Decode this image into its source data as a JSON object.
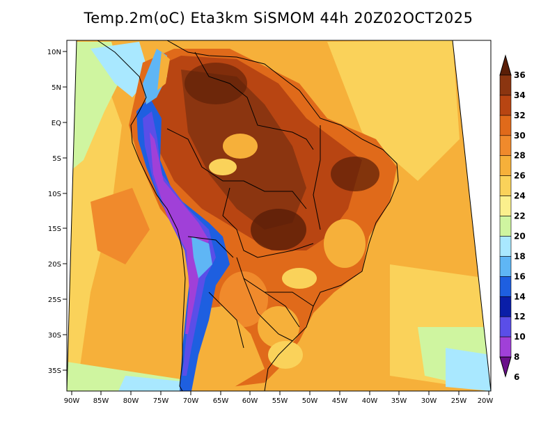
{
  "title": "Temp.2m(oC) Eta3km SiSMOM 44h 20Z02OCT2025",
  "lat_labels": [
    "10N",
    "5N",
    "EQ",
    "5S",
    "10S",
    "15S",
    "20S",
    "25S",
    "30S",
    "35S"
  ],
  "lon_labels": [
    "90W",
    "85W",
    "80W",
    "75W",
    "70W",
    "65W",
    "60W",
    "55W",
    "50W",
    "45W",
    "40W",
    "35W",
    "30W",
    "25W",
    "20W"
  ],
  "colorbar": {
    "labels": [
      "36",
      "34",
      "32",
      "30",
      "28",
      "26",
      "24",
      "22",
      "20",
      "18",
      "16",
      "14",
      "12",
      "10",
      "8",
      "6"
    ],
    "colors": [
      "#5a1e07",
      "#8b3510",
      "#b84512",
      "#e06a1a",
      "#f08a2c",
      "#f6b03a",
      "#fad25a",
      "#fbf08d",
      "#cff5a0",
      "#a9e8ff",
      "#5fb6f5",
      "#1e5fe0",
      "#0a1ea8",
      "#5a4ee8",
      "#a040d8",
      "#6a108a"
    ]
  }
}
